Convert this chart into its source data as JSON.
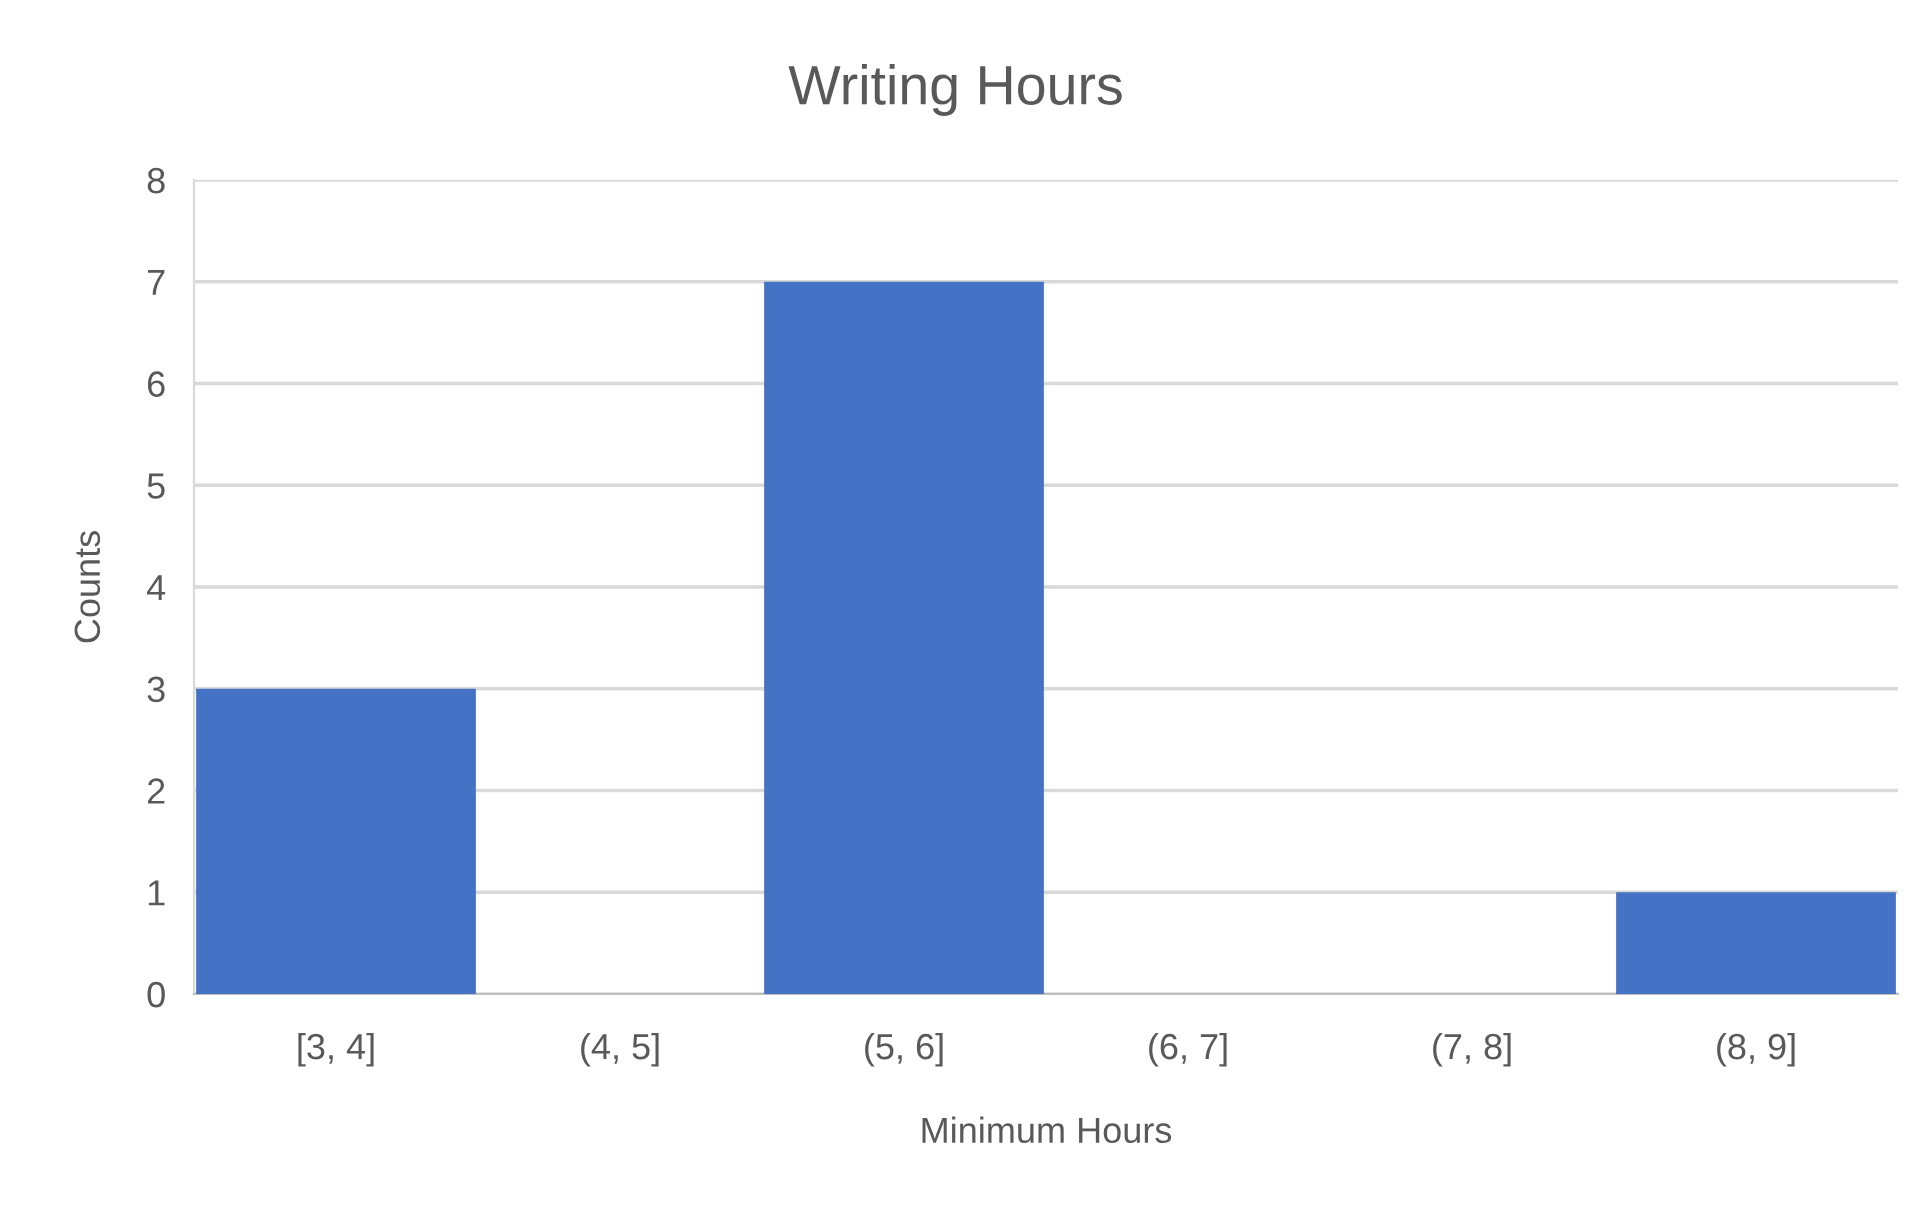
{
  "chart_data": {
    "type": "bar",
    "title": "Writing Hours",
    "xlabel": "Minimum Hours",
    "ylabel": "Counts",
    "categories": [
      "[3, 4]",
      "(4, 5]",
      "(5, 6]",
      "(6, 7]",
      "(7, 8]",
      "(8, 9]"
    ],
    "values": [
      3,
      0,
      7,
      0,
      0,
      1
    ],
    "color": "#4472c4",
    "ylim": [
      0,
      8
    ],
    "yticks": [
      0,
      1,
      2,
      3,
      4,
      5,
      6,
      7,
      8
    ],
    "grid": "y"
  }
}
